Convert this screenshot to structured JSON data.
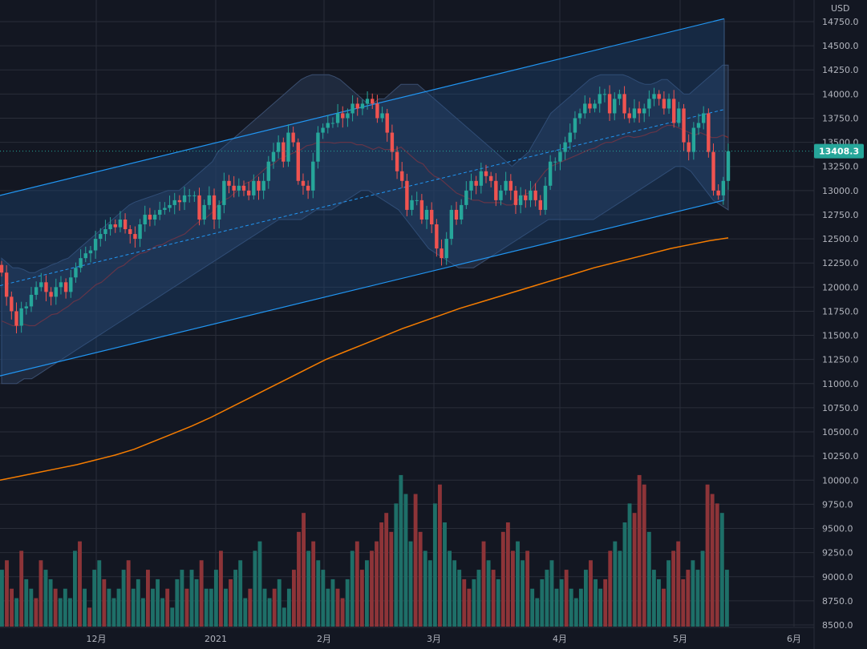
{
  "currency": "USD",
  "last_price": "13408.3",
  "colors": {
    "background": "#131722",
    "grid": "#2a2e39",
    "up": "#26a69a",
    "down": "#ef5350",
    "up_volume": "#1e6f68",
    "down_volume": "#8d3438",
    "channel_line": "#2196f3",
    "bollinger_mid": "#8b2a2a",
    "sma200": "#f57c00",
    "price_tag": "#26a69a",
    "axis_text": "#b2b5be"
  },
  "chart_data": {
    "type": "candlestick",
    "instrument_quote_currency": "USD",
    "y_axis_ticks": [
      "8500.0",
      "8750.0",
      "9000.0",
      "9250.0",
      "9500.0",
      "9750.0",
      "10000.0",
      "10250.0",
      "10500.0",
      "10750.0",
      "11000.0",
      "11250.0",
      "11500.0",
      "11750.0",
      "12000.0",
      "12250.0",
      "12500.0",
      "12750.0",
      "13000.0",
      "13250.0",
      "13500.0",
      "13750.0",
      "14000.0",
      "14250.0",
      "14500.0",
      "14750.0"
    ],
    "ylim": [
      8500,
      15000
    ],
    "x_axis_ticks": [
      "12月",
      "2021",
      "2月",
      "3月",
      "4月",
      "5月",
      "6月"
    ],
    "last_price": 13408.3,
    "grid": true,
    "close": [
      12150,
      11900,
      11750,
      11600,
      11780,
      11800,
      11920,
      12000,
      12050,
      11950,
      11900,
      12000,
      12050,
      11950,
      12100,
      12200,
      12300,
      12350,
      12380,
      12500,
      12550,
      12600,
      12650,
      12620,
      12700,
      12600,
      12550,
      12500,
      12650,
      12750,
      12700,
      12750,
      12800,
      12820,
      12850,
      12900,
      12880,
      12950,
      12950,
      12950,
      12700,
      12850,
      12950,
      12700,
      12850,
      13100,
      13050,
      13000,
      13050,
      13000,
      12950,
      13100,
      13000,
      13100,
      13300,
      13400,
      13500,
      13300,
      13600,
      13500,
      13100,
      13050,
      13000,
      13300,
      13600,
      13650,
      13700,
      13700,
      13800,
      13750,
      13800,
      13900,
      13850,
      13900,
      13950,
      13900,
      13750,
      13800,
      13600,
      13400,
      13200,
      13100,
      12800,
      12900,
      12900,
      12700,
      12800,
      12650,
      12400,
      12300,
      12500,
      12800,
      12700,
      12850,
      13000,
      13100,
      13050,
      13200,
      13150,
      13100,
      12900,
      13000,
      13100,
      13000,
      12850,
      12950,
      12900,
      13000,
      12900,
      12800,
      13050,
      13300,
      13300,
      13400,
      13500,
      13600,
      13750,
      13800,
      13900,
      13850,
      13900,
      14000,
      14000,
      13800,
      13950,
      14000,
      13800,
      13750,
      13850,
      13800,
      13850,
      13950,
      14000,
      13950,
      13850,
      13950,
      13700,
      13850,
      13500,
      13400,
      13650,
      13700,
      13800,
      13400,
      13000,
      12950,
      13100,
      13408
    ],
    "bollinger_upper": [
      12300,
      12250,
      12200,
      12200,
      12180,
      12150,
      12150,
      12180,
      12200,
      12230,
      12250,
      12280,
      12300,
      12350,
      12400,
      12450,
      12500,
      12550,
      12600,
      12650,
      12700,
      12750,
      12800,
      12850,
      12880,
      12900,
      12920,
      12940,
      12960,
      12980,
      13000,
      13000,
      13000,
      13050,
      13100,
      13150,
      13200,
      13250,
      13300,
      13400,
      13450,
      13500,
      13550,
      13600,
      13650,
      13700,
      13750,
      13800,
      13850,
      13900,
      13950,
      14000,
      14050,
      14100,
      14150,
      14180,
      14200,
      14200,
      14200,
      14200,
      14180,
      14150,
      14100,
      14050,
      14000,
      13950,
      13900,
      13900,
      13950,
      13950,
      14000,
      14050,
      14100,
      14100,
      14100,
      14100,
      14050,
      14000,
      13950,
      13900,
      13850,
      13800,
      13750,
      13700,
      13650,
      13600,
      13550,
      13500,
      13450,
      13400,
      13350,
      13300,
      13250,
      13300,
      13350,
      13400,
      13500,
      13600,
      13700,
      13800,
      13850,
      13900,
      13950,
      14000,
      14050,
      14100,
      14150,
      14180,
      14200,
      14200,
      14200,
      14200,
      14200,
      14180,
      14150,
      14120,
      14100,
      14100,
      14120,
      14150,
      14150,
      14100,
      14050,
      14000,
      14000,
      14050,
      14100,
      14150,
      14200,
      14250,
      14300,
      14300
    ],
    "bollinger_lower": [
      11000,
      11000,
      11000,
      11050,
      11050,
      11100,
      11150,
      11200,
      11250,
      11300,
      11350,
      11400,
      11450,
      11500,
      11550,
      11600,
      11650,
      11700,
      11750,
      11800,
      11850,
      11900,
      11950,
      12000,
      12050,
      12100,
      12150,
      12200,
      12250,
      12300,
      12350,
      12400,
      12450,
      12500,
      12550,
      12600,
      12650,
      12700,
      12700,
      12700,
      12700,
      12750,
      12800,
      12800,
      12800,
      12850,
      12900,
      12950,
      13000,
      13000,
      12950,
      12900,
      12850,
      12800,
      12700,
      12600,
      12500,
      12400,
      12350,
      12300,
      12250,
      12200,
      12200,
      12200,
      12250,
      12300,
      12350,
      12400,
      12450,
      12500,
      12550,
      12600,
      12650,
      12700,
      12700,
      12700,
      12700,
      12700,
      12700,
      12700,
      12750,
      12800,
      12850,
      12900,
      12950,
      13000,
      13050,
      13100,
      13150,
      13200,
      13250,
      13250,
      13200,
      13100,
      13000,
      12900,
      12850,
      12800
    ]
  },
  "sma200": [
    10000,
    10040,
    10080,
    10120,
    10160,
    10210,
    10260,
    10320,
    10400,
    10480,
    10560,
    10650,
    10750,
    10850,
    10950,
    11050,
    11150,
    11250,
    11330,
    11410,
    11490,
    11570,
    11640,
    11710,
    11780,
    11840,
    11900,
    11960,
    12020,
    12080,
    12140,
    12200,
    12250,
    12300,
    12350,
    12400,
    12440,
    12480,
    12510
  ],
  "volume": [
    60,
    70,
    40,
    30,
    80,
    50,
    40,
    30,
    70,
    60,
    50,
    40,
    30,
    40,
    30,
    80,
    90,
    40,
    20,
    60,
    70,
    50,
    40,
    30,
    40,
    60,
    70,
    40,
    50,
    30,
    60,
    40,
    50,
    30,
    40,
    20,
    50,
    60,
    40,
    60,
    50,
    70,
    40,
    40,
    60,
    80,
    40,
    50,
    60,
    70,
    30,
    40,
    80,
    90,
    40,
    30,
    40,
    50,
    20,
    40,
    60,
    100,
    120,
    80,
    90,
    70,
    60,
    40,
    50,
    40,
    30,
    50,
    80,
    90,
    60,
    70,
    80,
    90,
    110,
    120,
    100,
    130,
    160,
    140,
    90,
    140,
    100,
    80,
    70,
    130,
    150,
    110,
    80,
    70,
    60,
    50,
    40,
    50,
    60,
    90,
    70,
    60,
    50,
    100,
    110,
    80,
    90,
    70,
    80,
    40,
    30,
    50,
    60,
    70,
    40,
    50,
    60,
    40,
    30,
    40,
    60,
    70,
    50,
    40,
    50,
    80,
    90,
    80,
    110,
    130,
    120,
    160,
    150,
    100,
    60,
    50,
    40,
    70,
    80,
    90,
    50,
    60,
    70,
    60,
    80,
    150,
    140,
    130,
    120,
    60
  ],
  "volume_colors": [
    1,
    0,
    0,
    1,
    0,
    1,
    1,
    0,
    0,
    1,
    1,
    0,
    1,
    1,
    1,
    1,
    0,
    1,
    0,
    1,
    1,
    0,
    1,
    1,
    1,
    1,
    0,
    1,
    1,
    1,
    0,
    1,
    1,
    1,
    0,
    1,
    1,
    1,
    0,
    1,
    1,
    0,
    1,
    1,
    1,
    0,
    1,
    0,
    1,
    1,
    1,
    0,
    1,
    1,
    1,
    1,
    0,
    1,
    1,
    1,
    0,
    0,
    0,
    1,
    0,
    1,
    1,
    1,
    1,
    0,
    0,
    1,
    1,
    0,
    0,
    1,
    0,
    0,
    0,
    0,
    0,
    1,
    1,
    1,
    1,
    0,
    0,
    1,
    1,
    1,
    0,
    1,
    1,
    1,
    1,
    0,
    0,
    1,
    1,
    0,
    1,
    0,
    1,
    0,
    0,
    0,
    1,
    1,
    0,
    1,
    1,
    1,
    1,
    1,
    1,
    1,
    0,
    1,
    1,
    1,
    1,
    0,
    1,
    1,
    0,
    0,
    1,
    1,
    1,
    1,
    0,
    0,
    0,
    1,
    1,
    1,
    0,
    1,
    0,
    0,
    0,
    0,
    1,
    1,
    1,
    0,
    0,
    0,
    1,
    1
  ]
}
